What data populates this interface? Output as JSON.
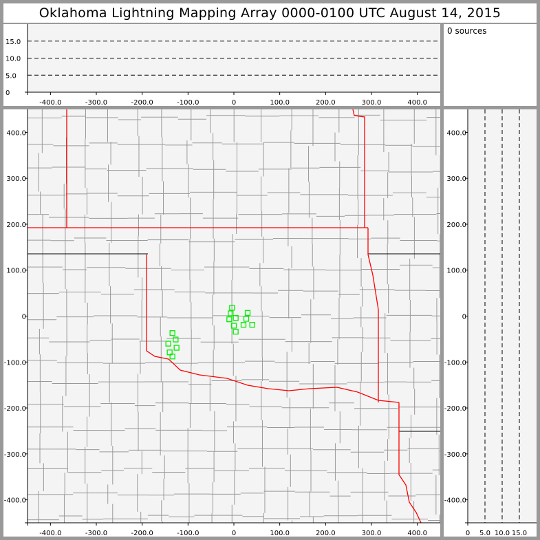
{
  "title": "Oklahoma Lightning Mapping Array   0000-0100 UTC  August 14, 2015",
  "sources_label": "0 sources",
  "top_panel": {
    "x_ticks": [
      "-400.0",
      "-300.0",
      "-200.0",
      "-100.0",
      "0",
      "100.0",
      "200.0",
      "300.0",
      "400.0"
    ],
    "x_tick_values": [
      -400,
      -300,
      -200,
      -100,
      0,
      100,
      200,
      300,
      400
    ],
    "y_ticks": [
      "0",
      "5.0",
      "10.0",
      "15.0"
    ],
    "y_tick_values": [
      0,
      5,
      10,
      15
    ],
    "y_range": [
      0,
      20
    ],
    "x_range": [
      -450,
      450
    ],
    "dashed_gridlines": [
      5,
      10,
      15
    ]
  },
  "map_panel": {
    "x_range": [
      -450,
      450
    ],
    "y_range": [
      -450,
      450
    ],
    "x_ticks": [
      "-400.0",
      "-300.0",
      "-200.0",
      "-100.0",
      "0",
      "100.0",
      "200.0",
      "300.0",
      "400.0"
    ],
    "x_tick_values": [
      -400,
      -300,
      -200,
      -100,
      0,
      100,
      200,
      300,
      400
    ],
    "y_ticks": [
      "400.0",
      "300.0",
      "200.0",
      "100.0",
      "0",
      "-100.0",
      "-200.0",
      "-300.0",
      "-400.0"
    ],
    "y_tick_values": [
      400,
      300,
      200,
      100,
      0,
      -100,
      -200,
      -300,
      -400
    ],
    "state_border_color": "#ff0000",
    "county_color": "#999999",
    "station_color": "#00ee00",
    "stations": [
      [
        -4,
        18
      ],
      [
        -7,
        6
      ],
      [
        -10,
        -7
      ],
      [
        4,
        -4
      ],
      [
        0,
        -21
      ],
      [
        4,
        -34
      ],
      [
        30,
        7
      ],
      [
        27,
        -6
      ],
      [
        21,
        -19
      ],
      [
        40,
        -19
      ],
      [
        -134,
        -37
      ],
      [
        -127,
        -51
      ],
      [
        -143,
        -60
      ],
      [
        -125,
        -69
      ],
      [
        -140,
        -79
      ],
      [
        -134,
        -88
      ]
    ]
  },
  "side_panel": {
    "x_ticks": [
      "0",
      "5.0",
      "10.0",
      "15.0"
    ],
    "x_tick_values": [
      0,
      5,
      10,
      15
    ],
    "x_range": [
      0,
      20
    ],
    "dashed_gridlines": [
      5,
      10,
      15
    ]
  }
}
